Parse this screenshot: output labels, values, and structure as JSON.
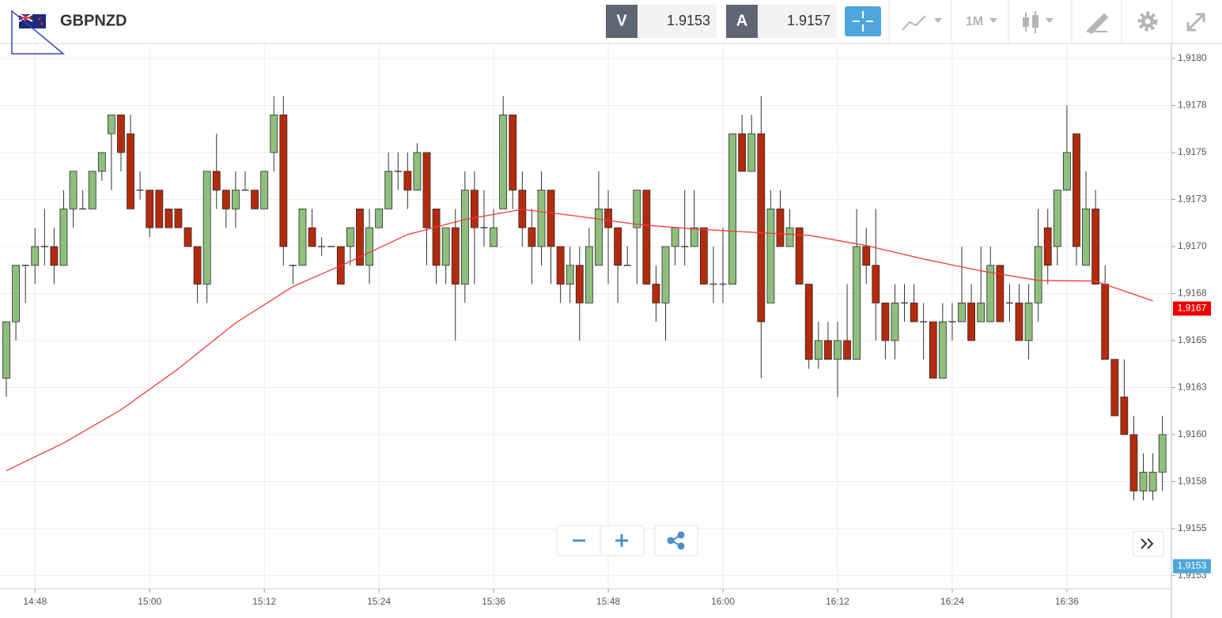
{
  "header": {
    "symbol": "GBPNZD",
    "bid_label": "V",
    "bid": 1.9153,
    "ask_label": "A",
    "ask": 1.9157,
    "timeframe": "1M"
  },
  "chart_data": {
    "type": "candlestick",
    "x": [
      "14:45",
      "14:46",
      "14:47",
      "14:48",
      "14:49",
      "14:50",
      "14:51",
      "14:52",
      "14:53",
      "14:54",
      "14:55",
      "14:56",
      "14:57",
      "14:58",
      "14:59",
      "15:00",
      "15:01",
      "15:02",
      "15:03",
      "15:04",
      "15:05",
      "15:06",
      "15:07",
      "15:08",
      "15:09",
      "15:10",
      "15:11",
      "15:12",
      "15:13",
      "15:14",
      "15:15",
      "15:16",
      "15:17",
      "15:18",
      "15:19",
      "15:20",
      "15:21",
      "15:22",
      "15:23",
      "15:24",
      "15:25",
      "15:26",
      "15:27",
      "15:28",
      "15:29",
      "15:30",
      "15:31",
      "15:32",
      "15:33",
      "15:34",
      "15:35",
      "15:36",
      "15:37",
      "15:38",
      "15:39",
      "15:40",
      "15:41",
      "15:42",
      "15:43",
      "15:44",
      "15:45",
      "15:46",
      "15:47",
      "15:48",
      "15:49",
      "15:50",
      "15:51",
      "15:52",
      "15:53",
      "15:54",
      "15:55",
      "15:56",
      "15:57",
      "15:58",
      "15:59",
      "16:00",
      "16:01",
      "16:02",
      "16:03",
      "16:04",
      "16:05",
      "16:06",
      "16:07",
      "16:08",
      "16:09",
      "16:10",
      "16:11",
      "16:12",
      "16:13",
      "16:14",
      "16:15",
      "16:16",
      "16:17",
      "16:18",
      "16:19",
      "16:20",
      "16:21",
      "16:22",
      "16:23",
      "16:24",
      "16:25",
      "16:26",
      "16:27",
      "16:28",
      "16:29",
      "16:30",
      "16:31",
      "16:32",
      "16:33",
      "16:34",
      "16:35",
      "16:36",
      "16:37",
      "16:38",
      "16:39",
      "16:40",
      "16:41",
      "16:42",
      "16:43",
      "16:44",
      "16:45",
      "16:46"
    ],
    "open": [
      1.9163,
      1.9166,
      1.9169,
      1.9169,
      1.917,
      1.917,
      1.9169,
      1.9172,
      1.9172,
      1.9172,
      1.9174,
      1.9176,
      1.9177,
      1.9176,
      1.9173,
      1.9173,
      1.9173,
      1.9172,
      1.9172,
      1.9171,
      1.917,
      1.9168,
      1.9174,
      1.9173,
      1.9172,
      1.9173,
      1.9173,
      1.9172,
      1.9175,
      1.9177,
      1.9169,
      1.9169,
      1.9171,
      1.917,
      1.917,
      1.917,
      1.917,
      1.9172,
      1.9169,
      1.9171,
      1.9172,
      1.9174,
      1.9174,
      1.9173,
      1.9175,
      1.9172,
      1.9169,
      1.9171,
      1.9168,
      1.9173,
      1.9171,
      1.917,
      1.9172,
      1.9177,
      1.9173,
      1.9171,
      1.917,
      1.9173,
      1.917,
      1.9168,
      1.9169,
      1.9167,
      1.9169,
      1.9172,
      1.9171,
      1.9169,
      1.9171,
      1.9173,
      1.9168,
      1.9167,
      1.917,
      1.917,
      1.917,
      1.9171,
      1.9168,
      1.9168,
      1.9168,
      1.9176,
      1.9174,
      1.9176,
      1.9167,
      1.9172,
      1.917,
      1.9171,
      1.9168,
      1.9164,
      1.9165,
      1.9164,
      1.9165,
      1.9164,
      1.917,
      1.9169,
      1.9167,
      1.9165,
      1.9167,
      1.9167,
      1.9166,
      1.9166,
      1.9163,
      1.9166,
      1.9166,
      1.9167,
      1.9166,
      1.9166,
      1.9169,
      1.9167,
      1.9167,
      1.9165,
      1.9167,
      1.9171,
      1.917,
      1.9173,
      1.9176,
      1.9169,
      1.9172,
      1.9168,
      1.9164,
      1.9162,
      1.916,
      1.9157,
      1.9157,
      1.9158
    ],
    "high": [
      1.9166,
      1.9169,
      1.9169,
      1.9171,
      1.9172,
      1.9171,
      1.9173,
      1.9174,
      1.9173,
      1.9174,
      1.9175,
      1.9177,
      1.9177,
      1.9177,
      1.9174,
      1.9173,
      1.9173,
      1.9172,
      1.9172,
      1.9171,
      1.917,
      1.9174,
      1.9176,
      1.9173,
      1.9174,
      1.9174,
      1.9173,
      1.9174,
      1.9178,
      1.9178,
      1.9169,
      1.9172,
      1.9172,
      1.91705,
      1.917,
      1.917,
      1.9171,
      1.9172,
      1.9172,
      1.9172,
      1.9175,
      1.9175,
      1.9175,
      1.91755,
      1.9175,
      1.9172,
      1.9171,
      1.9172,
      1.9174,
      1.9174,
      1.9173,
      1.9172,
      1.9178,
      1.9177,
      1.9174,
      1.9172,
      1.9174,
      1.9173,
      1.917,
      1.917,
      1.917,
      1.9171,
      1.9174,
      1.9173,
      1.9171,
      1.917,
      1.9173,
      1.9173,
      1.9169,
      1.917,
      1.9171,
      1.9173,
      1.9173,
      1.9171,
      1.917,
      1.9171,
      1.9176,
      1.9177,
      1.9177,
      1.9178,
      1.9173,
      1.9173,
      1.9172,
      1.9171,
      1.9168,
      1.9166,
      1.9166,
      1.9166,
      1.9168,
      1.9172,
      1.9171,
      1.9172,
      1.9167,
      1.9168,
      1.9168,
      1.9168,
      1.9167,
      1.9166,
      1.9167,
      1.9167,
      1.917,
      1.9168,
      1.917,
      1.917,
      1.9169,
      1.9168,
      1.9168,
      1.9168,
      1.9172,
      1.9172,
      1.9173,
      1.91775,
      1.9176,
      1.9174,
      1.9173,
      1.9169,
      1.9164,
      1.9164,
      1.9161,
      1.9159,
      1.9159,
      1.9161
    ],
    "low": [
      1.9162,
      1.9165,
      1.9167,
      1.9168,
      1.9169,
      1.9168,
      1.9169,
      1.9171,
      1.9172,
      1.9172,
      1.91735,
      1.9173,
      1.9174,
      1.9172,
      1.91725,
      1.91705,
      1.9171,
      1.9171,
      1.9171,
      1.917,
      1.9167,
      1.9167,
      1.9172,
      1.9171,
      1.9171,
      1.9173,
      1.9172,
      1.9172,
      1.9174,
      1.9169,
      1.9168,
      1.9169,
      1.917,
      1.91695,
      1.917,
      1.9168,
      1.9169,
      1.9169,
      1.9168,
      1.9171,
      1.9172,
      1.9173,
      1.9172,
      1.9173,
      1.9169,
      1.9168,
      1.9168,
      1.9165,
      1.9167,
      1.9168,
      1.917,
      1.917,
      1.9172,
      1.9172,
      1.917,
      1.9168,
      1.9169,
      1.9168,
      1.9167,
      1.9167,
      1.9165,
      1.9167,
      1.9169,
      1.9168,
      1.9167,
      1.9169,
      1.9168,
      1.9168,
      1.9166,
      1.9165,
      1.9169,
      1.9169,
      1.917,
      1.9168,
      1.9167,
      1.9167,
      1.9168,
      1.9174,
      1.9174,
      1.9163,
      1.9167,
      1.917,
      1.917,
      1.9168,
      1.91635,
      1.91635,
      1.9164,
      1.9162,
      1.9164,
      1.9164,
      1.9168,
      1.9165,
      1.9164,
      1.9164,
      1.9166,
      1.9166,
      1.9164,
      1.9163,
      1.9163,
      1.9165,
      1.9166,
      1.9165,
      1.9166,
      1.9166,
      1.9166,
      1.9166,
      1.9165,
      1.9164,
      1.9166,
      1.9168,
      1.9169,
      1.9173,
      1.9169,
      1.9169,
      1.9168,
      1.9164,
      1.9161,
      1.916,
      1.91565,
      1.91565,
      1.91565,
      1.9157
    ],
    "close": [
      1.9166,
      1.9169,
      1.9169,
      1.917,
      1.917,
      1.9169,
      1.9172,
      1.9174,
      1.9172,
      1.9174,
      1.9175,
      1.9177,
      1.9175,
      1.9172,
      1.9173,
      1.9171,
      1.9171,
      1.9171,
      1.9171,
      1.917,
      1.9168,
      1.9174,
      1.9173,
      1.9172,
      1.9173,
      1.9173,
      1.9172,
      1.9174,
      1.9177,
      1.917,
      1.9169,
      1.9172,
      1.917,
      1.917,
      1.917,
      1.9168,
      1.9171,
      1.9169,
      1.9171,
      1.9172,
      1.9174,
      1.9174,
      1.9173,
      1.9175,
      1.9171,
      1.9169,
      1.9171,
      1.9168,
      1.9173,
      1.9171,
      1.9171,
      1.9171,
      1.9177,
      1.9173,
      1.9171,
      1.917,
      1.9173,
      1.917,
      1.9168,
      1.9169,
      1.9167,
      1.917,
      1.9172,
      1.9171,
      1.9169,
      1.9169,
      1.9173,
      1.9168,
      1.9167,
      1.917,
      1.9171,
      1.917,
      1.9171,
      1.9168,
      1.9168,
      1.9168,
      1.9176,
      1.9174,
      1.9176,
      1.9166,
      1.9172,
      1.917,
      1.9171,
      1.9168,
      1.9164,
      1.9165,
      1.9164,
      1.9165,
      1.9164,
      1.917,
      1.9169,
      1.9167,
      1.9165,
      1.9167,
      1.9167,
      1.9166,
      1.9166,
      1.9163,
      1.9166,
      1.9166,
      1.9167,
      1.9165,
      1.9167,
      1.9169,
      1.9166,
      1.9167,
      1.9165,
      1.9167,
      1.917,
      1.9169,
      1.9173,
      1.9175,
      1.917,
      1.9172,
      1.9168,
      1.9164,
      1.9161,
      1.916,
      1.9157,
      1.9158,
      1.9158,
      1.916
    ],
    "up_color": "#8fbf7c",
    "down_color": "#b52a0c",
    "doji_color": "#444444",
    "ma": {
      "color": "#f03a3a",
      "x": [
        "14:45",
        "14:51",
        "14:57",
        "15:03",
        "15:09",
        "15:15",
        "15:21",
        "15:27",
        "15:33",
        "15:39",
        "15:45",
        "15:51",
        "15:57",
        "16:03",
        "16:09",
        "16:15",
        "16:21",
        "16:27",
        "16:33",
        "16:39",
        "16:45"
      ],
      "values": [
        1.915808,
        1.915955,
        1.916132,
        1.91635,
        1.916594,
        1.916787,
        1.916921,
        1.917064,
        1.917144,
        1.917198,
        1.91716,
        1.917118,
        1.917093,
        1.917076,
        1.91706,
        1.917005,
        1.916934,
        1.916871,
        1.91682,
        1.916816,
        1.916711
      ]
    },
    "ma_marker": {
      "value": 1.91667,
      "label": "1,9167",
      "color": "#ee0000"
    },
    "price_marker": {
      "value": 1.9153,
      "label": "1,9153",
      "color": "#4ea6dc"
    },
    "ylim": [
      1.91518,
      1.91808
    ],
    "yticks": [
      {
        "value": 1.918,
        "label": "1,9180"
      },
      {
        "value": 1.91775,
        "label": "1,9178"
      },
      {
        "value": 1.9175,
        "label": "1,9175"
      },
      {
        "value": 1.91725,
        "label": "1,9173"
      },
      {
        "value": 1.917,
        "label": "1,9170"
      },
      {
        "value": 1.91675,
        "label": "1,9168"
      },
      {
        "value": 1.9165,
        "label": "1,9165"
      },
      {
        "value": 1.91625,
        "label": "1,9163"
      },
      {
        "value": 1.916,
        "label": "1,9160"
      },
      {
        "value": 1.91575,
        "label": "1,9158"
      },
      {
        "value": 1.9155,
        "label": "1,9155"
      },
      {
        "value": 1.91525,
        "label": "1,9153"
      }
    ],
    "xticks": [
      "14:48",
      "15:00",
      "15:12",
      "15:24",
      "15:36",
      "15:48",
      "16:00",
      "16:12",
      "16:24",
      "16:36"
    ],
    "grid": true
  }
}
